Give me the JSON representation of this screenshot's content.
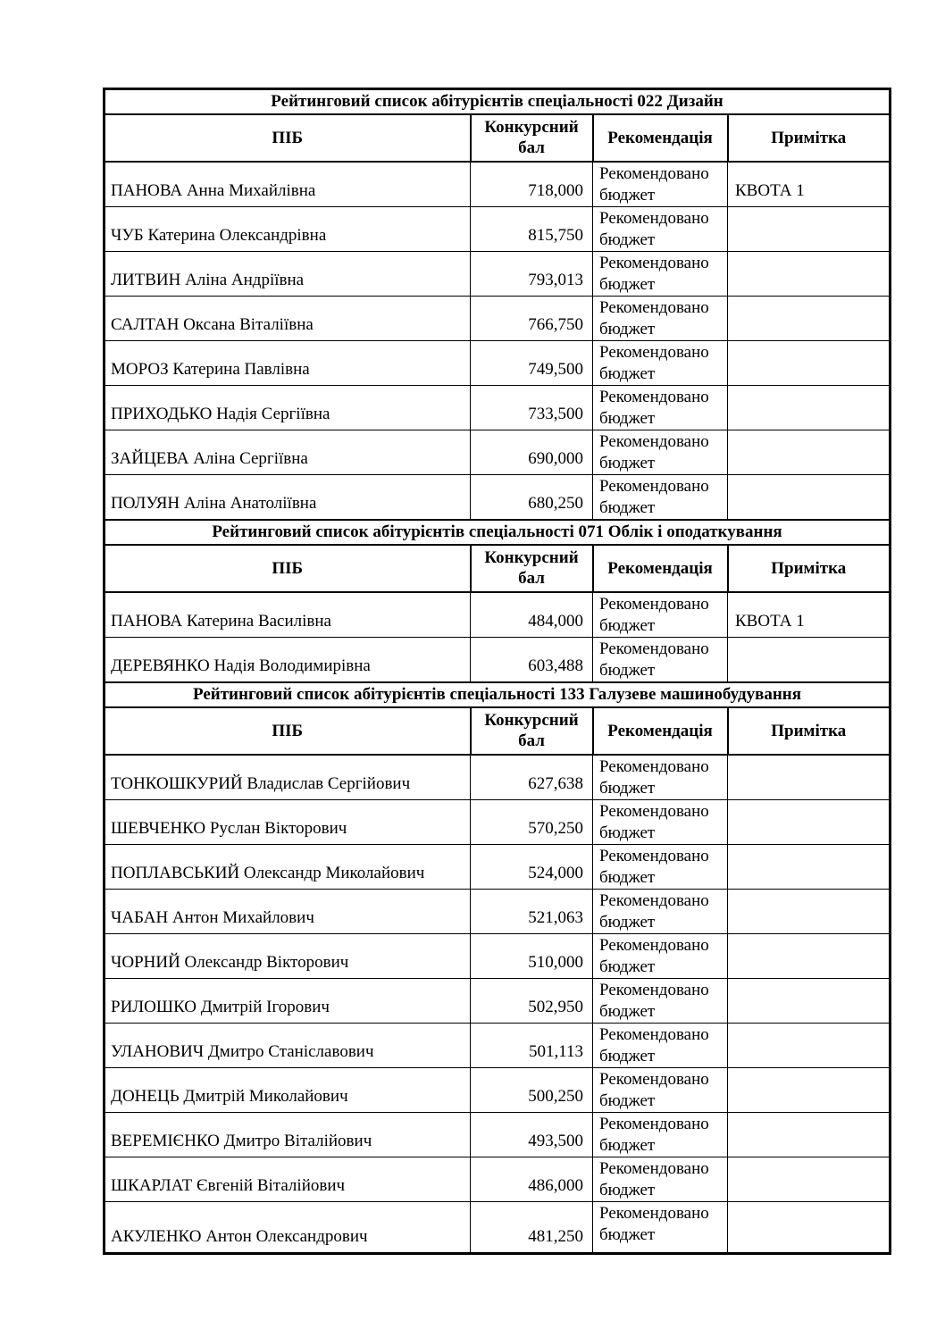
{
  "page": {
    "background": "#ffffff",
    "border_color": "#000000",
    "text_color": "#000000"
  },
  "table": {
    "columns": [
      "ПІБ",
      "Конкурсний бал",
      "Рекомендація",
      "Примітка"
    ],
    "sections": [
      {
        "title": "Рейтинговий список абітурієнтів спеціальності 022 Дизайн",
        "rows": [
          {
            "name": "ПАНОВА Анна Михайлівна",
            "score": "718,000",
            "recommendation": "Рекомендовано бюджет",
            "note": "КВОТА 1"
          },
          {
            "name": "ЧУБ Катерина Олександрівна",
            "score": "815,750",
            "recommendation": "Рекомендовано бюджет",
            "note": ""
          },
          {
            "name": "ЛИТВИН Аліна Андріївна",
            "score": "793,013",
            "recommendation": "Рекомендовано бюджет",
            "note": ""
          },
          {
            "name": "САЛТАН Оксана Віталіївна",
            "score": "766,750",
            "recommendation": "Рекомендовано бюджет",
            "note": ""
          },
          {
            "name": "МОРОЗ Катерина Павлівна",
            "score": "749,500",
            "recommendation": "Рекомендовано бюджет",
            "note": ""
          },
          {
            "name": "ПРИХОДЬКО Надія Сергіївна",
            "score": "733,500",
            "recommendation": "Рекомендовано бюджет",
            "note": ""
          },
          {
            "name": "ЗАЙЦЕВА Аліна Сергіївна",
            "score": "690,000",
            "recommendation": "Рекомендовано бюджет",
            "note": ""
          },
          {
            "name": "ПОЛУЯН Аліна Анатоліївна",
            "score": "680,250",
            "recommendation": "Рекомендовано бюджет",
            "note": ""
          }
        ]
      },
      {
        "title": "Рейтинговий список абітурієнтів спеціальності 071 Облік і оподаткування",
        "rows": [
          {
            "name": "ПАНОВА Катерина Василівна",
            "score": "484,000",
            "recommendation": "Рекомендовано бюджет",
            "note": "КВОТА 1"
          },
          {
            "name": "ДЕРЕВЯНКО Надія Володимирівна",
            "score": "603,488",
            "recommendation": "Рекомендовано бюджет",
            "note": ""
          }
        ]
      },
      {
        "title": "Рейтинговий список абітурієнтів спеціальності 133 Галузеве машинобудування",
        "rows": [
          {
            "name": "ТОНКОШКУРИЙ Владислав Сергійович",
            "score": "627,638",
            "recommendation": "Рекомендовано бюджет",
            "note": ""
          },
          {
            "name": "ШЕВЧЕНКО Руслан Вікторович",
            "score": "570,250",
            "recommendation": "Рекомендовано бюджет",
            "note": ""
          },
          {
            "name": "ПОПЛАВСЬКИЙ Олександр Миколайович",
            "score": "524,000",
            "recommendation": "Рекомендовано бюджет",
            "note": ""
          },
          {
            "name": "ЧАБАН Антон Михайлович",
            "score": "521,063",
            "recommendation": "Рекомендовано бюджет",
            "note": ""
          },
          {
            "name": "ЧОРНИЙ Олександр Вікторович",
            "score": "510,000",
            "recommendation": "Рекомендовано бюджет",
            "note": ""
          },
          {
            "name": "РИЛОШКО Дмитрій Ігорович",
            "score": "502,950",
            "recommendation": "Рекомендовано бюджет",
            "note": ""
          },
          {
            "name": "УЛАНОВИЧ Дмитро Станіславович",
            "score": "501,113",
            "recommendation": "Рекомендовано бюджет",
            "note": ""
          },
          {
            "name": "ДОНЕЦЬ Дмитрій Миколайович",
            "score": "500,250",
            "recommendation": "Рекомендовано бюджет",
            "note": ""
          },
          {
            "name": "ВЕРЕМІЄНКО Дмитро Віталійович",
            "score": "493,500",
            "recommendation": "Рекомендовано бюджет",
            "note": ""
          },
          {
            "name": "ШКАРЛАТ Євгеній Віталійович",
            "score": "486,000",
            "recommendation": "Рекомендовано бюджет",
            "note": ""
          },
          {
            "name": "АКУЛЕНКО Антон Олександрович",
            "score": "481,250",
            "recommendation": "Рекомендовано бюджет",
            "note": ""
          }
        ]
      }
    ]
  }
}
